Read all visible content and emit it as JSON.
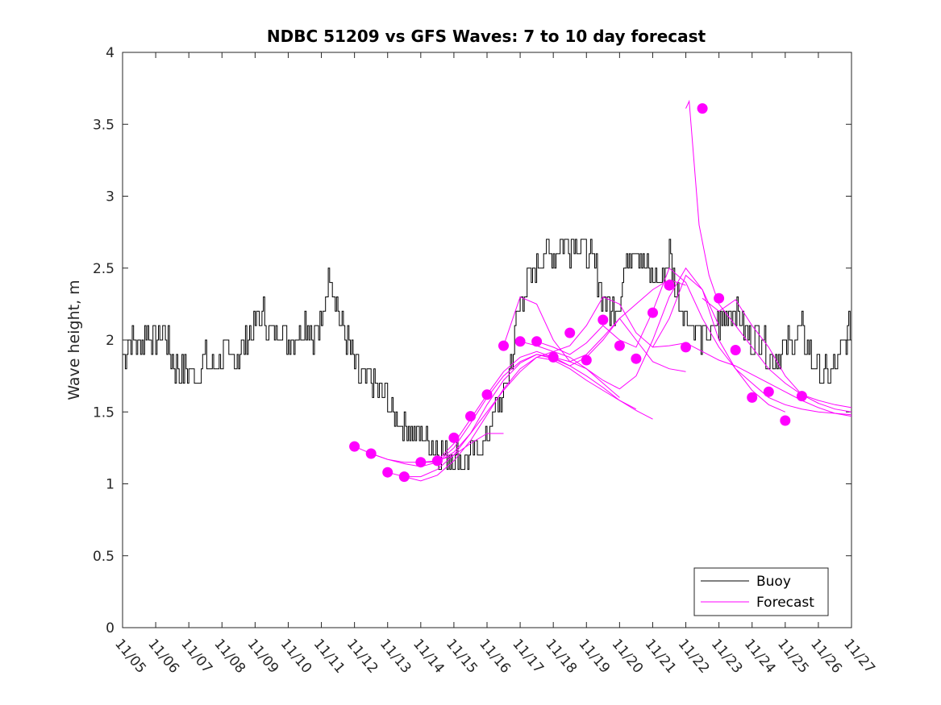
{
  "chart_data": {
    "type": "line",
    "title": "NDBC 51209 vs GFS Waves: 7 to 10 day forecast",
    "xlabel": "",
    "ylabel": "Wave height, m",
    "xlim": [
      0,
      22
    ],
    "ylim": [
      0,
      4
    ],
    "x_tick_labels": [
      "11/05",
      "11/06",
      "11/07",
      "11/08",
      "11/09",
      "11/10",
      "11/11",
      "11/12",
      "11/13",
      "11/14",
      "11/15",
      "11/16",
      "11/17",
      "11/18",
      "11/19",
      "11/20",
      "11/21",
      "11/22",
      "11/23",
      "11/24",
      "11/25",
      "11/26",
      "11/27"
    ],
    "y_ticks": [
      0,
      0.5,
      1,
      1.5,
      2,
      2.5,
      3,
      3.5,
      4
    ],
    "y_tick_labels": [
      "0",
      "0.5",
      "1",
      "1.5",
      "2",
      "2.5",
      "3",
      "3.5",
      "4"
    ],
    "grid": false,
    "legend": {
      "position": "bottom-right",
      "entries": [
        "Buoy",
        "Forecast"
      ]
    },
    "colors": {
      "buoy": "#000000",
      "forecast": "#ff00ff"
    },
    "buoy": {
      "name": "Buoy",
      "x": [
        0.0,
        0.25,
        0.5,
        0.75,
        1.0,
        1.25,
        1.5,
        1.75,
        2.0,
        2.25,
        2.5,
        2.75,
        3.0,
        3.25,
        3.5,
        3.75,
        4.0,
        4.25,
        4.5,
        4.75,
        5.0,
        5.25,
        5.5,
        5.75,
        6.0,
        6.25,
        6.5,
        6.75,
        7.0,
        7.25,
        7.5,
        7.75,
        8.0,
        8.25,
        8.5,
        8.75,
        9.0,
        9.25,
        9.5,
        9.75,
        10.0,
        10.25,
        10.5,
        10.75,
        11.0,
        11.25,
        11.5,
        11.75,
        12.0,
        12.25,
        12.5,
        12.75,
        13.0,
        13.25,
        13.5,
        13.75,
        14.0,
        14.25,
        14.5,
        14.75,
        15.0,
        15.25,
        15.5,
        15.75,
        16.0,
        16.25,
        16.5,
        16.75,
        17.0,
        17.25,
        17.5,
        17.75,
        18.0,
        18.25,
        18.5,
        18.75,
        19.0,
        19.25,
        19.5,
        19.75,
        20.0,
        20.25,
        20.5,
        20.75,
        21.0,
        21.25,
        21.5,
        21.75,
        22.0
      ],
      "y": [
        1.9,
        2.0,
        1.95,
        2.05,
        2.0,
        2.1,
        1.85,
        1.75,
        1.8,
        1.75,
        1.85,
        1.85,
        1.9,
        1.85,
        1.9,
        2.0,
        2.1,
        2.2,
        2.05,
        2.1,
        2.0,
        2.05,
        2.15,
        2.05,
        2.1,
        2.5,
        2.2,
        2.0,
        1.8,
        1.7,
        1.75,
        1.65,
        1.6,
        1.45,
        1.4,
        1.35,
        1.35,
        1.3,
        1.25,
        1.2,
        1.2,
        1.15,
        1.2,
        1.25,
        1.35,
        1.5,
        1.6,
        1.9,
        2.3,
        2.4,
        2.5,
        2.6,
        2.6,
        2.7,
        2.65,
        2.7,
        2.6,
        2.5,
        2.3,
        2.2,
        2.3,
        2.6,
        2.7,
        2.5,
        2.45,
        2.4,
        2.6,
        2.3,
        2.2,
        2.1,
        2.0,
        2.05,
        2.1,
        2.2,
        2.25,
        2.1,
        2.0,
        2.05,
        1.9,
        1.85,
        1.95,
        2.0,
        2.05,
        1.9,
        1.8,
        1.75,
        1.8,
        1.95,
        2.1
      ]
    },
    "forecasts": [
      {
        "name": "Forecast",
        "x": [
          7.0,
          7.5,
          8.0,
          8.5,
          9.0,
          9.5,
          10.0,
          10.5,
          11.0,
          11.5
        ],
        "y": [
          1.26,
          1.21,
          1.17,
          1.15,
          1.15,
          1.16,
          1.2,
          1.28,
          1.35,
          1.35
        ]
      },
      {
        "name": "Forecast",
        "x": [
          7.5,
          8.0,
          8.5,
          9.0,
          9.5,
          10.0,
          10.5,
          11.0,
          11.5,
          12.0,
          12.5,
          13.0,
          13.5,
          14.0,
          14.5,
          15.0
        ],
        "y": [
          1.21,
          1.17,
          1.14,
          1.12,
          1.15,
          1.22,
          1.35,
          1.5,
          1.65,
          1.78,
          1.88,
          1.92,
          1.88,
          1.8,
          1.7,
          1.6
        ]
      },
      {
        "name": "Forecast",
        "x": [
          8.0,
          8.5,
          9.0,
          9.5,
          10.0,
          10.5,
          11.0,
          11.5,
          12.0,
          12.5,
          13.0,
          13.5,
          14.0,
          14.5,
          15.0,
          15.5
        ],
        "y": [
          1.08,
          1.05,
          1.05,
          1.1,
          1.2,
          1.35,
          1.55,
          1.72,
          1.84,
          1.9,
          1.88,
          1.82,
          1.75,
          1.67,
          1.58,
          1.52
        ]
      },
      {
        "name": "Forecast",
        "x": [
          8.5,
          9.0,
          9.5,
          10.0,
          10.5,
          11.0,
          11.5,
          12.0,
          12.5,
          13.0,
          13.5,
          14.0,
          14.5,
          15.0,
          15.5,
          16.0
        ],
        "y": [
          1.05,
          1.02,
          1.06,
          1.16,
          1.3,
          1.48,
          1.66,
          1.8,
          1.88,
          1.86,
          1.8,
          1.72,
          1.65,
          1.58,
          1.51,
          1.45
        ]
      },
      {
        "name": "Forecast",
        "x": [
          9.0,
          9.5,
          10.0,
          10.5,
          11.0,
          11.5,
          12.0,
          12.5,
          13.0,
          13.5,
          14.0,
          14.5,
          15.0,
          15.5,
          16.0,
          16.5,
          17.0
        ],
        "y": [
          1.15,
          1.15,
          1.25,
          1.42,
          1.6,
          1.75,
          1.85,
          1.9,
          1.87,
          1.82,
          1.88,
          2.0,
          2.15,
          2.25,
          2.35,
          2.42,
          2.38
        ]
      },
      {
        "name": "Forecast",
        "x": [
          9.5,
          10.0,
          10.5,
          11.0,
          11.5,
          12.0,
          12.5,
          13.0,
          13.5,
          14.0,
          14.5,
          15.0,
          15.5,
          16.0,
          16.5,
          17.0
        ],
        "y": [
          1.16,
          1.28,
          1.45,
          1.62,
          1.78,
          1.88,
          1.92,
          1.88,
          1.85,
          1.9,
          2.02,
          2.15,
          2.0,
          1.85,
          1.8,
          1.78
        ]
      },
      {
        "name": "Forecast",
        "x": [
          11.5,
          12.0,
          12.5,
          13.0,
          13.5,
          14.0,
          14.5,
          15.0,
          15.5,
          16.0,
          16.5,
          17.0,
          17.5,
          18.0
        ],
        "y": [
          1.96,
          2.3,
          2.25,
          2.0,
          1.85,
          1.8,
          1.72,
          1.66,
          1.75,
          2.0,
          2.3,
          2.5,
          2.35,
          2.1
        ]
      },
      {
        "name": "Forecast",
        "x": [
          12.0,
          12.5,
          13.0,
          13.5,
          14.0,
          14.5,
          15.0,
          15.5,
          16.0,
          16.5,
          17.0,
          17.5,
          18.0,
          18.5,
          19.0,
          19.5,
          20.0
        ],
        "y": [
          1.99,
          1.96,
          1.92,
          1.96,
          2.1,
          2.3,
          2.25,
          2.05,
          1.95,
          2.15,
          2.45,
          2.35,
          2.0,
          1.8,
          1.65,
          1.55,
          1.5
        ]
      },
      {
        "name": "Forecast",
        "x": [
          12.5,
          13.0,
          13.5,
          14.0,
          14.5,
          15.0,
          15.5,
          16.0,
          16.5,
          17.0,
          17.5,
          18.0,
          18.5,
          19.0,
          19.5,
          20.0,
          20.5,
          21.0,
          21.5,
          22.0
        ],
        "y": [
          1.99,
          1.95,
          1.9,
          1.98,
          2.1,
          2.0,
          1.95,
          2.2,
          2.5,
          2.4,
          2.15,
          1.95,
          1.8,
          1.7,
          1.6,
          1.55,
          1.52,
          1.5,
          1.49,
          1.48
        ]
      },
      {
        "name": "Forecast",
        "x": [
          16.0,
          16.5,
          17.0,
          17.5,
          18.0,
          18.5,
          19.0,
          19.5,
          20.0,
          20.5,
          21.0,
          21.5,
          22.0
        ],
        "y": [
          1.95,
          1.96,
          1.98,
          1.92,
          1.86,
          1.82,
          1.76,
          1.7,
          1.64,
          1.58,
          1.53,
          1.49,
          1.47
        ]
      },
      {
        "name": "Forecast",
        "x": [
          17.0,
          17.1,
          17.4,
          17.7,
          18.0,
          18.5,
          19.0,
          19.5,
          20.0,
          20.5,
          21.0,
          21.5,
          22.0
        ],
        "y": [
          3.61,
          3.66,
          2.8,
          2.45,
          2.25,
          2.1,
          1.95,
          1.8,
          1.7,
          1.62,
          1.58,
          1.55,
          1.53
        ]
      },
      {
        "name": "Forecast",
        "x": [
          17.5,
          18.0,
          18.5,
          19.0,
          19.5,
          20.0,
          20.5,
          21.0,
          21.5,
          22.0
        ],
        "y": [
          2.29,
          2.2,
          2.28,
          2.1,
          1.95,
          1.75,
          1.62,
          1.56,
          1.52,
          1.5
        ]
      }
    ],
    "forecast_markers": {
      "name": "Forecast",
      "x": [
        7.0,
        7.5,
        8.0,
        8.5,
        9.0,
        9.5,
        10.0,
        10.5,
        11.0,
        11.5,
        12.0,
        12.5,
        13.0,
        13.5,
        14.0,
        14.5,
        15.0,
        15.5,
        16.0,
        16.5,
        17.0,
        17.5,
        18.0,
        18.5,
        19.0,
        19.5,
        20.0,
        20.5
      ],
      "y": [
        1.26,
        1.21,
        1.08,
        1.05,
        1.15,
        1.16,
        1.32,
        1.47,
        1.62,
        1.96,
        1.99,
        1.99,
        1.88,
        2.05,
        1.86,
        2.14,
        1.96,
        1.87,
        2.19,
        2.38,
        1.95,
        3.61,
        2.29,
        1.93,
        1.6,
        1.64,
        1.44,
        1.61
      ]
    }
  }
}
